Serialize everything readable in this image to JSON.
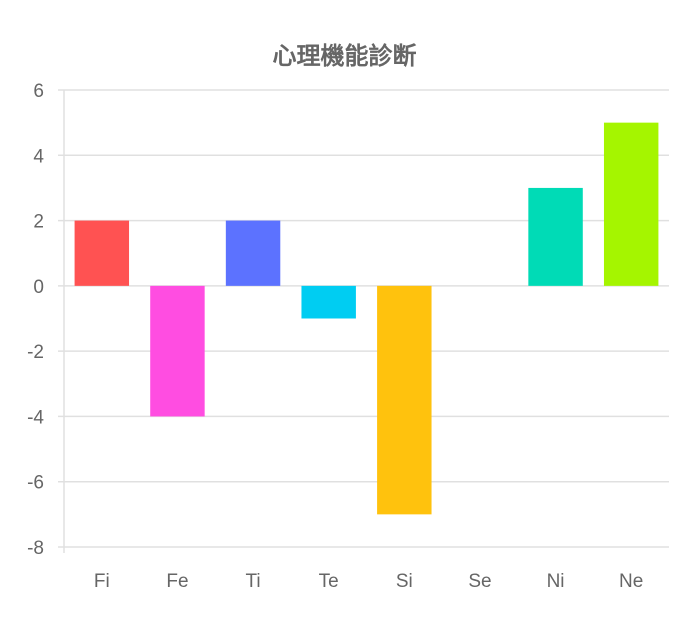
{
  "chart_data": {
    "type": "bar",
    "title": "心理機能診断",
    "xlabel": "",
    "ylabel": "",
    "categories": [
      "Fi",
      "Fe",
      "Ti",
      "Te",
      "Si",
      "Se",
      "Ni",
      "Ne"
    ],
    "values": [
      2,
      -4,
      2,
      -1,
      -7,
      0,
      3,
      5
    ],
    "colors": [
      "#ff5252",
      "#ff4de1",
      "#5c72ff",
      "#00cdf2",
      "#ffc20d",
      "#ff8c3a",
      "#00dbb6",
      "#a5f500"
    ],
    "ylim": [
      -8,
      6
    ],
    "yticks": [
      "6",
      "4",
      "2",
      "0",
      "-2",
      "-4",
      "-6",
      "-8"
    ],
    "grid": true,
    "legend": "none"
  }
}
